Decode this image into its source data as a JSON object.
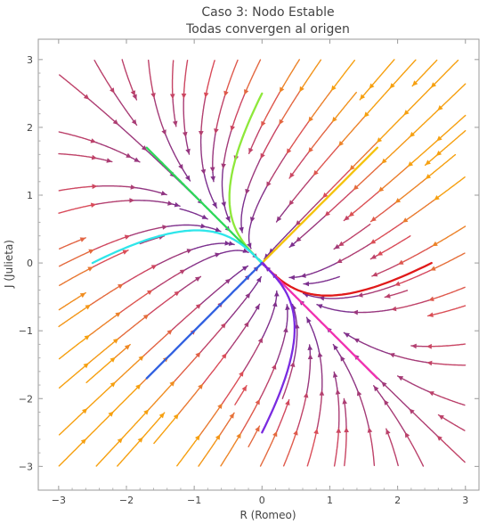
{
  "chart_data": {
    "type": "stream",
    "title": "Caso 3: Nodo Estable",
    "subtitle": "Todas convergen al origen",
    "xlabel": "R (Romeo)",
    "ylabel": "J (Julieta)",
    "xlim": [
      -3.3,
      3.2
    ],
    "ylim": [
      -3.35,
      3.3
    ],
    "xticks": [
      "−3",
      "−2",
      "−1",
      "0",
      "1",
      "2",
      "3"
    ],
    "yticks": [
      "−3",
      "−2",
      "−1",
      "0",
      "1",
      "2",
      "3"
    ],
    "xtick_values": [
      -3,
      -2,
      -1,
      0,
      1,
      2,
      3
    ],
    "ytick_values": [
      -3,
      -2,
      -1,
      0,
      1,
      2,
      3
    ],
    "system": {
      "a": -2,
      "b": -1,
      "c": -1,
      "d": -2
    },
    "trajectories": [
      {
        "start": [
          0,
          2.5
        ],
        "color": "#8ee83a"
      },
      {
        "start": [
          -1.7,
          1.7
        ],
        "color": "#2ed85a"
      },
      {
        "start": [
          1.7,
          1.7
        ],
        "color": "#f4c20a"
      },
      {
        "start": [
          2.5,
          0
        ],
        "color": "#e01a1a"
      },
      {
        "start": [
          -2.5,
          0
        ],
        "color": "#2ee6ea"
      },
      {
        "start": [
          -1.7,
          -1.7
        ],
        "color": "#2f5fe0"
      },
      {
        "start": [
          1.7,
          -1.7
        ],
        "color": "#f02fb0"
      },
      {
        "start": [
          0,
          -2.5
        ],
        "color": "#7a2be0"
      }
    ],
    "colors": {
      "stream_slow": "#7b2f8e",
      "stream_mid": "#d94a5a",
      "stream_fast": "#f6a010"
    }
  }
}
